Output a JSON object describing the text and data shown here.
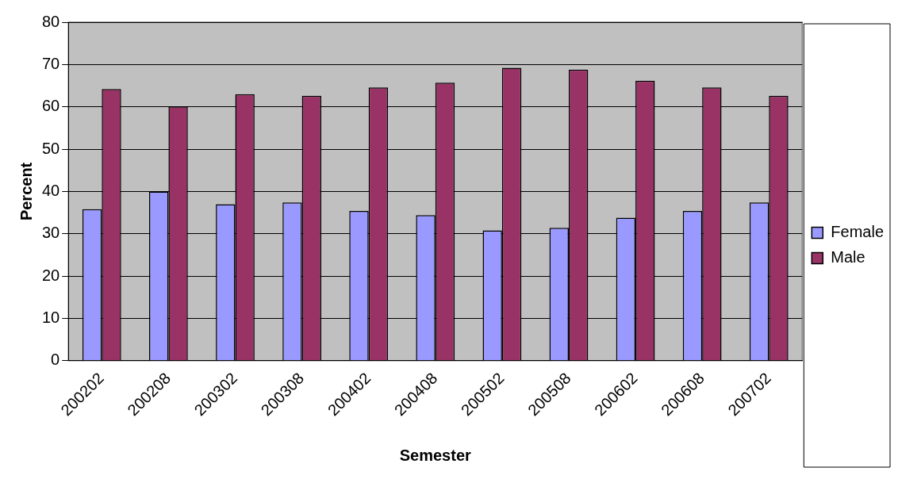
{
  "chart_data": {
    "type": "bar",
    "xlabel": "Semester",
    "ylabel": "Percent",
    "categories": [
      "200202",
      "200208",
      "200302",
      "200308",
      "200402",
      "200408",
      "200502",
      "200508",
      "200602",
      "200608",
      "200702"
    ],
    "series": [
      {
        "name": "Female",
        "color": "#9999ff",
        "values": [
          35.8,
          40.0,
          37.0,
          37.4,
          35.4,
          34.4,
          30.8,
          31.4,
          33.8,
          35.4,
          37.4
        ]
      },
      {
        "name": "Male",
        "color": "#993366",
        "values": [
          64.2,
          60.1,
          63.0,
          62.6,
          64.6,
          65.7,
          69.2,
          68.8,
          66.2,
          64.6,
          62.6
        ]
      }
    ],
    "ylim": [
      0,
      80
    ],
    "yticks": [
      0,
      10,
      20,
      30,
      40,
      50,
      60,
      70,
      80
    ],
    "grid": "y",
    "legend": "right"
  }
}
